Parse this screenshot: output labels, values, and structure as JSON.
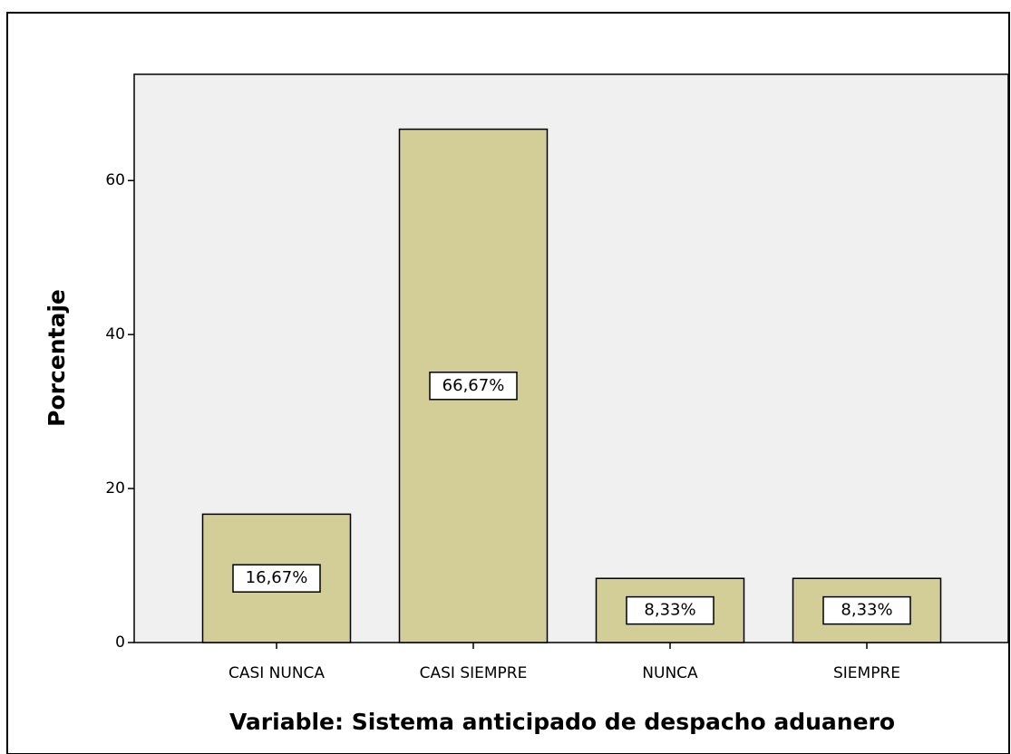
{
  "chart_data": {
    "type": "bar",
    "x_label": "Variable: Sistema anticipado de despacho aduanero",
    "y_label": "Porcentaje",
    "categories": [
      "CASI NUNCA",
      "CASI SIEMPRE",
      "NUNCA",
      "SIEMPRE"
    ],
    "values": [
      16.67,
      66.67,
      8.33,
      8.33
    ],
    "value_labels": [
      "16,67%",
      "66,67%",
      "8,33%",
      "8,33%"
    ],
    "color": "#d3ce98",
    "background": "#f0f0f0",
    "ylim": [
      0,
      73.8
    ],
    "yticks": [
      0,
      20,
      40,
      60
    ],
    "grid": false
  }
}
